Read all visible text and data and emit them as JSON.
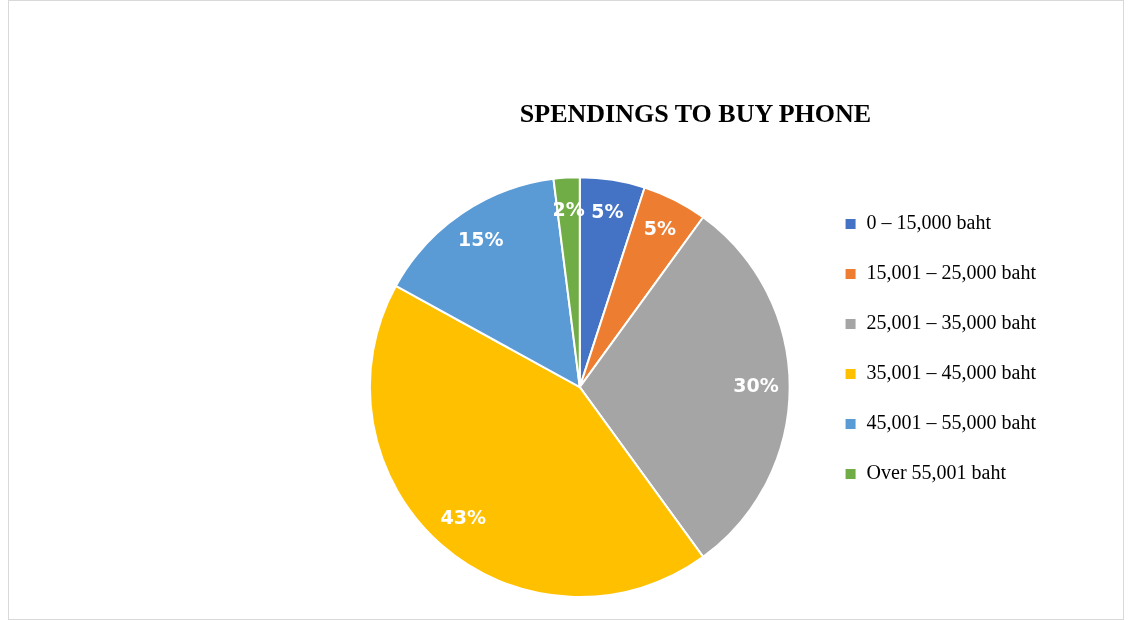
{
  "chart_data": {
    "type": "pie",
    "title": "SPENDINGS TO BUY PHONE",
    "categories": [
      "0 – 15,000 baht",
      "15,001 – 25,000 baht",
      "25,001 – 35,000 baht",
      "35,001 – 45,000 baht",
      "45,001 – 55,000 baht",
      "Over 55,001 baht"
    ],
    "values": [
      5,
      5,
      30,
      43,
      15,
      2
    ],
    "colors": [
      "#4472c4",
      "#ed7d31",
      "#a5a5a5",
      "#ffc000",
      "#5b9bd5",
      "#70ad47"
    ],
    "value_labels": [
      "5%",
      "5%",
      "30%",
      "43%",
      "15%",
      "2%"
    ],
    "legend": "right"
  }
}
